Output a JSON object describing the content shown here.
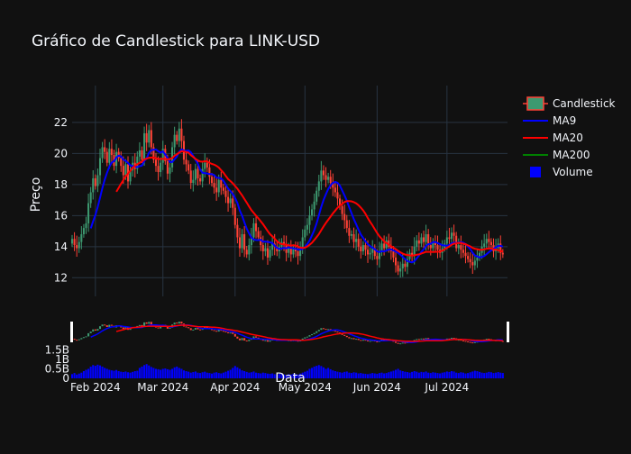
{
  "chart_data": {
    "type": "candlestick",
    "title": "Gráfico de Candlestick para LINK-USD",
    "xlabel": "Data",
    "ylabel": "Preço",
    "x_range": [
      "2024-01-22",
      "2024-07-27"
    ],
    "y_range": [
      10.8,
      23.5
    ],
    "y_ticks": [
      12,
      14,
      16,
      18,
      20,
      22
    ],
    "x_tick_labels": [
      {
        "date": "2024-02-01",
        "label": "Feb 2024"
      },
      {
        "date": "2024-03-01",
        "label": "Mar 2024"
      },
      {
        "date": "2024-04-01",
        "label": "Apr 2024"
      },
      {
        "date": "2024-05-01",
        "label": "May 2024"
      },
      {
        "date": "2024-06-01",
        "label": "Jun 2024"
      },
      {
        "date": "2024-07-01",
        "label": "Jul 2024"
      }
    ],
    "volume_ticks": [
      {
        "value": 0,
        "label": "0"
      },
      {
        "value": 500000000,
        "label": "0.5B"
      },
      {
        "value": 1000000000,
        "label": "1B"
      },
      {
        "value": 1500000000,
        "label": "1.5B"
      }
    ],
    "start_date": "2024-01-22",
    "close": [
      14.5,
      14.1,
      13.9,
      14.3,
      14.8,
      15.2,
      15.5,
      16.8,
      17.5,
      18.4,
      17.9,
      18.6,
      19.7,
      20.4,
      20.1,
      19.4,
      20.3,
      19.9,
      19.2,
      20.1,
      19.7,
      19.2,
      18.6,
      19.3,
      18.2,
      18.9,
      19.4,
      19.0,
      19.8,
      20.2,
      19.6,
      21.3,
      20.7,
      21.5,
      20.4,
      19.6,
      19.2,
      18.8,
      19.4,
      20.3,
      19.5,
      18.7,
      19.1,
      20.4,
      21.2,
      20.8,
      21.6,
      20.8,
      19.6,
      19.3,
      18.9,
      18.1,
      18.3,
      19.0,
      18.4,
      18.2,
      19.0,
      19.4,
      19.1,
      18.5,
      18.1,
      17.8,
      17.5,
      18.3,
      17.8,
      17.6,
      17.2,
      16.8,
      17.1,
      16.5,
      15.4,
      14.6,
      13.9,
      14.8,
      13.8,
      13.5,
      14.1,
      14.6,
      15.5,
      15.0,
      14.6,
      14.1,
      13.7,
      13.9,
      13.3,
      13.8,
      14.2,
      14.0,
      13.7,
      14.0,
      14.3,
      14.1,
      13.6,
      13.9,
      13.5,
      13.9,
      13.7,
      13.4,
      14.0,
      14.6,
      15.1,
      15.4,
      16.0,
      16.4,
      16.9,
      17.6,
      18.2,
      18.9,
      18.6,
      18.3,
      18.5,
      18.1,
      17.8,
      17.5,
      17.1,
      16.6,
      16.1,
      15.7,
      15.2,
      14.7,
      14.8,
      14.3,
      14.5,
      14.0,
      13.7,
      14.1,
      13.8,
      13.5,
      13.6,
      13.9,
      13.4,
      13.2,
      13.7,
      14.2,
      13.9,
      14.4,
      14.0,
      13.7,
      13.3,
      12.8,
      12.4,
      12.6,
      12.9,
      12.7,
      13.2,
      13.6,
      13.4,
      14.0,
      14.4,
      14.2,
      14.6,
      14.3,
      14.8,
      14.1,
      13.9,
      14.3,
      14.1,
      13.8,
      13.6,
      13.9,
      14.2,
      14.6,
      14.5,
      14.9,
      14.7,
      13.9,
      14.1,
      13.8,
      13.6,
      13.4,
      13.2,
      13.0,
      12.8,
      13.1,
      13.3,
      13.6,
      14.0,
      14.2,
      14.5,
      14.3,
      14.1,
      13.7,
      13.9,
      14.2,
      13.6,
      13.5
    ],
    "volume": [
      0.22,
      0.28,
      0.2,
      0.25,
      0.3,
      0.38,
      0.45,
      0.5,
      0.62,
      0.7,
      0.66,
      0.72,
      0.68,
      0.62,
      0.55,
      0.5,
      0.45,
      0.42,
      0.4,
      0.44,
      0.38,
      0.35,
      0.33,
      0.36,
      0.32,
      0.3,
      0.34,
      0.38,
      0.4,
      0.55,
      0.62,
      0.7,
      0.75,
      0.68,
      0.6,
      0.55,
      0.5,
      0.48,
      0.45,
      0.5,
      0.52,
      0.48,
      0.45,
      0.5,
      0.58,
      0.62,
      0.55,
      0.5,
      0.42,
      0.38,
      0.35,
      0.3,
      0.33,
      0.36,
      0.3,
      0.28,
      0.32,
      0.35,
      0.3,
      0.28,
      0.25,
      0.3,
      0.32,
      0.28,
      0.26,
      0.3,
      0.35,
      0.4,
      0.45,
      0.55,
      0.65,
      0.58,
      0.5,
      0.42,
      0.38,
      0.34,
      0.3,
      0.32,
      0.36,
      0.3,
      0.28,
      0.26,
      0.3,
      0.28,
      0.25,
      0.24,
      0.26,
      0.22,
      0.2,
      0.24,
      0.22,
      0.2,
      0.18,
      0.22,
      0.2,
      0.24,
      0.22,
      0.2,
      0.25,
      0.3,
      0.35,
      0.4,
      0.5,
      0.55,
      0.62,
      0.66,
      0.7,
      0.65,
      0.58,
      0.5,
      0.55,
      0.48,
      0.42,
      0.38,
      0.35,
      0.32,
      0.3,
      0.34,
      0.36,
      0.3,
      0.28,
      0.32,
      0.3,
      0.26,
      0.28,
      0.25,
      0.24,
      0.22,
      0.25,
      0.28,
      0.26,
      0.24,
      0.28,
      0.3,
      0.26,
      0.28,
      0.32,
      0.36,
      0.4,
      0.45,
      0.5,
      0.42,
      0.38,
      0.35,
      0.33,
      0.3,
      0.34,
      0.38,
      0.35,
      0.3,
      0.34,
      0.32,
      0.36,
      0.3,
      0.28,
      0.32,
      0.3,
      0.28,
      0.26,
      0.3,
      0.32,
      0.36,
      0.34,
      0.38,
      0.36,
      0.3,
      0.28,
      0.32,
      0.3,
      0.26,
      0.28,
      0.32,
      0.36,
      0.4,
      0.38,
      0.34,
      0.3,
      0.28,
      0.3,
      0.34,
      0.32,
      0.28,
      0.3,
      0.33,
      0.3,
      0.28
    ],
    "volume_unit": "B",
    "series": [
      {
        "name": "Candlestick",
        "color_up": "#3d9970",
        "color_down": "#ff4136"
      },
      {
        "name": "MA9",
        "color": "#0000ff",
        "window": 9
      },
      {
        "name": "MA20",
        "color": "#ff0000",
        "window": 20
      },
      {
        "name": "MA200",
        "color": "#008000",
        "window": 200
      },
      {
        "name": "Volume",
        "color": "#0000ff"
      }
    ],
    "legend_position": "top-right",
    "grid": true,
    "range_slider": true
  }
}
